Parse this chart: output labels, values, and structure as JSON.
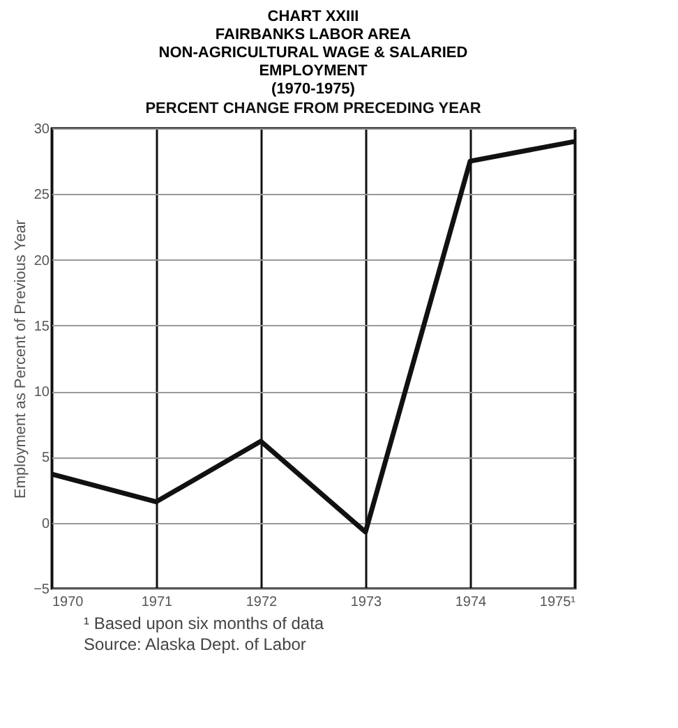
{
  "chart_data": {
    "type": "line",
    "title": [
      "CHART XXIII",
      "FAIRBANKS LABOR AREA",
      "NON-AGRICULTURAL WAGE & SALARIED",
      "EMPLOYMENT",
      "(1970-1975)"
    ],
    "subtitle": "PERCENT CHANGE FROM PRECEDING YEAR",
    "ylabel": "Employment as Percent of Previous Year",
    "categories": [
      "1970",
      "1971",
      "1972",
      "1973",
      "1974",
      "1975¹"
    ],
    "series": [
      {
        "color": "#111111",
        "values": [
          3.7,
          1.6,
          6.2,
          -0.7,
          27.5,
          29
        ]
      }
    ],
    "ylim": [
      -5,
      30
    ],
    "yticks": [
      -5,
      0,
      5,
      10,
      15,
      20,
      25,
      30
    ],
    "grid": true,
    "marker": "none",
    "line_style": "solid",
    "annotations": [
      "¹ Based upon six months of data",
      "Source: Alaska Dept. of Labor"
    ]
  }
}
